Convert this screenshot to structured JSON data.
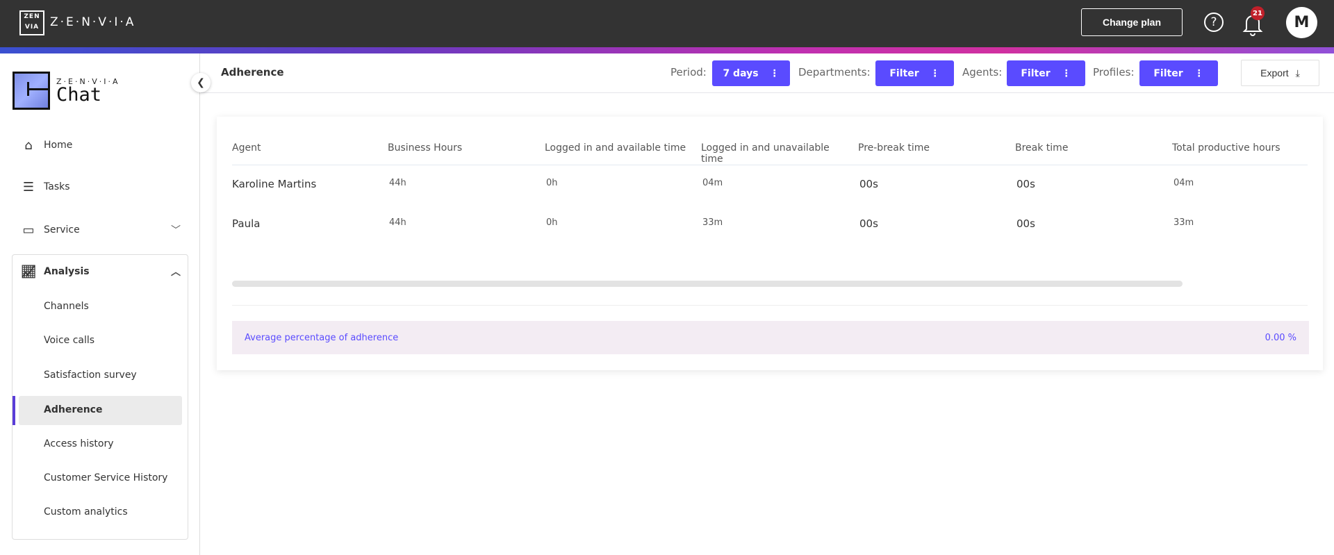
{
  "topbar": {
    "brand": "Z·E·N·V·I·A",
    "logo_text": "ZEN VIA",
    "change_plan": "Change plan",
    "help_icon": "?",
    "notifications": "21",
    "avatar": "M"
  },
  "sidebar": {
    "logo_small": "Z·E·N·V·I·A",
    "logo_big": "Chat",
    "items": [
      {
        "label": "Home",
        "icon": "home-icon"
      },
      {
        "label": "Tasks",
        "icon": "checklist-icon"
      },
      {
        "label": "Service",
        "icon": "chat-bubble-icon"
      },
      {
        "label": "Analysis",
        "icon": "line-chart-icon"
      }
    ],
    "sub_items": [
      "Channels",
      "Voice calls",
      "Satisfaction survey",
      "Adherence",
      "Access history",
      "Customer Service History",
      "Custom analytics"
    ],
    "active": "Adherence"
  },
  "header": {
    "title": "Adherence",
    "period_label": "Period:",
    "period_value": "7 days",
    "departments_label": "Departments:",
    "departments_value": "Filter",
    "agents_label": "Agents:",
    "agents_value": "Filter",
    "profiles_label": "Profiles:",
    "profiles_value": "Filter",
    "export": "Export"
  },
  "table": {
    "columns": [
      "Agent",
      "Business Hours",
      "Logged in and available time",
      "Logged in and unavailable time",
      "Pre-break time",
      "Break time",
      "Total productive hours"
    ],
    "rows": [
      [
        "Karoline Martins",
        "44h",
        "0h",
        "04m",
        "00s",
        "00s",
        "04m"
      ],
      [
        "Paula",
        "44h",
        "0h",
        "33m",
        "00s",
        "00s",
        "33m"
      ]
    ]
  },
  "summary": {
    "label": "Average percentage of adherence",
    "value": "0.00 %"
  },
  "colors": {
    "accent": "#5a4bff",
    "topbar": "#333333",
    "badge": "#c0202a"
  }
}
